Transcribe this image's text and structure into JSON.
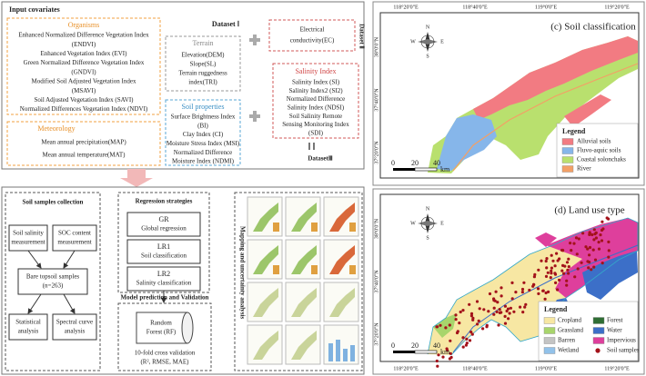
{
  "input_covariates": {
    "title": "Input covariates",
    "organisms": {
      "title": "Organisms",
      "items": [
        "Enhanced Normalized Difference Vegetation Index",
        "(ENDVI)",
        "Enhanced Vegetation Index (EVI)",
        "Green Normalized Difference Vegetation Index",
        "(GNDVI)",
        "Modified Soil Adjusted Vegetation Index",
        "(MSAVI)",
        "Soil Adjusted Vegetation Index (SAVI)",
        "Normalized Differences Vegetation Index (NDVI)"
      ]
    },
    "terrain": {
      "title": "Terrain",
      "items": [
        "Elevation(DEM)",
        "Slope(SL)",
        "Terrain ruggedness",
        "index(TRI)"
      ]
    },
    "soil_properties": {
      "title": "Soil properties",
      "items": [
        "Surface Brightness Index",
        "(BI)",
        "Clay Index (CI)",
        "Moisture Stress Index (MSI)",
        "Normalized Difference",
        "Moisture Index (NDMI)"
      ]
    },
    "meteorology": {
      "title": "Meteorology",
      "items": [
        "Mean annual precipitation(MAP)",
        "Mean annual temperature(MAT)"
      ]
    },
    "dataset1": "Dataset Ⅰ",
    "ec": [
      "Electrical",
      "conductivity(EC)"
    ],
    "dataset2": "Dataset Ⅱ",
    "salinity": {
      "title": "Salinity Index",
      "items": [
        "Salinity Index (SI)",
        "Salinity Index2 (SI2)",
        "Normalized Difference",
        "Salinity Index (NDSI)",
        "Soil Salinity Remote",
        "Sensing Monitoring Index",
        "(SDI)"
      ]
    },
    "dataset3": "DatasetⅢ"
  },
  "workflow": {
    "soil_samples": {
      "title": "Soil samples collection",
      "salinity": [
        "Soil salinity",
        "measurement"
      ],
      "soc": [
        "SOC content",
        "measurement"
      ],
      "bare": [
        "Bare topsoil samples",
        "(n=263)"
      ],
      "statistical": [
        "Statistical",
        "analysis"
      ],
      "spectral": [
        "Spectral curve",
        "analysis"
      ]
    },
    "regression": {
      "title": "Regression strategies",
      "items": [
        {
          "code": "GR",
          "label": "Global regression"
        },
        {
          "code": "LR1",
          "label": "Soil classification"
        },
        {
          "code": "LR2",
          "label": "Salinity classification"
        }
      ]
    },
    "model": {
      "title": "Model prediction and Validation",
      "rf": [
        "Random",
        "Forest (RF)"
      ],
      "cv": [
        "10-fold cross validation",
        "(R², RMSE, MAE)"
      ]
    },
    "mapping": {
      "title": "Mapping and uncertainty analysis"
    }
  },
  "maps": [
    {
      "title": "(c) Soil classification",
      "lon_labels": [
        "118°20'0\"E",
        "118°40'0\"E",
        "119°0'0\"E",
        "119°20'0\"E"
      ],
      "lat_labels": [
        "38°0'0\"N",
        "37°40'0\"N",
        "37°20'0\"N"
      ],
      "compass": [
        "N",
        "E",
        "S",
        "W"
      ],
      "scale": [
        "0",
        "20",
        "40",
        "km"
      ],
      "legend": {
        "title": "Legend",
        "items": [
          {
            "label": "Alluvial soils",
            "color": "#f27b82"
          },
          {
            "label": "Fluvo-aquic soils",
            "color": "#86b6ea"
          },
          {
            "label": "Coastal solonchaks",
            "color": "#b9e06e"
          },
          {
            "label": "River",
            "color": "#f3a066"
          }
        ]
      }
    },
    {
      "title": "(d) Land use type",
      "lon_labels": [
        "118°20'0\"E",
        "118°40'0\"E",
        "119°0'0\"E",
        "119°20'0\"E"
      ],
      "lat_labels": [
        "38°0'0\"N",
        "37°40'0\"N",
        "37°20'0\"N"
      ],
      "compass": [
        "N",
        "E",
        "S",
        "W"
      ],
      "scale": [
        "0",
        "20",
        "40",
        "km"
      ],
      "legend": {
        "title": "Legend",
        "items": [
          {
            "label": "Cropland",
            "color": "#f7e7a3"
          },
          {
            "label": "Grassland",
            "color": "#a8d56c"
          },
          {
            "label": "Barren",
            "color": "#c4c4c4"
          },
          {
            "label": "Wetland",
            "color": "#92c2ea"
          },
          {
            "label": "Forest",
            "color": "#2f6e34"
          },
          {
            "label": "Water",
            "color": "#3c6fc8"
          },
          {
            "label": "Impervious",
            "color": "#de3f9c"
          },
          {
            "label": "Soil samples",
            "color": "#a3121a"
          }
        ]
      }
    }
  ]
}
